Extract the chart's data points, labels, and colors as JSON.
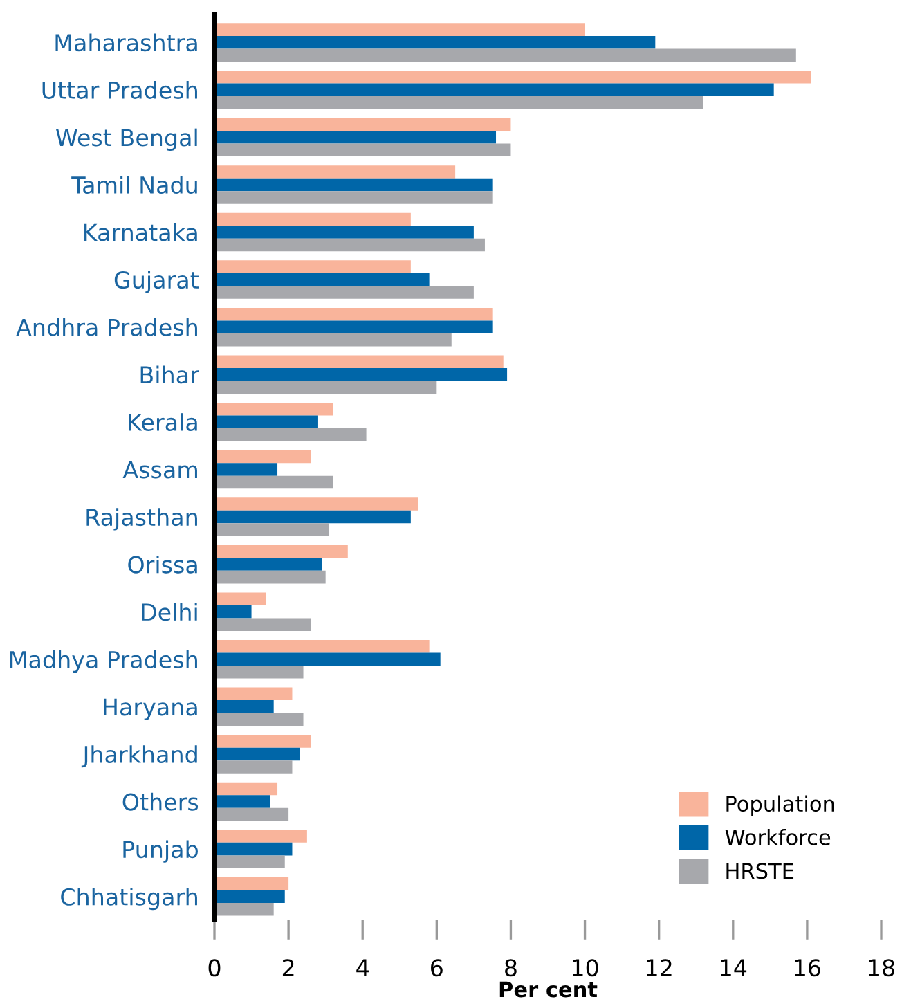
{
  "chart_data": {
    "type": "bar",
    "orientation": "horizontal",
    "xlabel": "Per cent",
    "categories": [
      "Maharashtra",
      "Uttar Pradesh",
      "West Bengal",
      "Tamil Nadu",
      "Karnataka",
      "Gujarat",
      "Andhra Pradesh",
      "Bihar",
      "Kerala",
      "Assam",
      "Rajasthan",
      "Orissa",
      "Delhi",
      "Madhya Pradesh",
      "Haryana",
      "Jharkhand",
      "Others",
      "Punjab",
      "Chhatisgarh"
    ],
    "series": [
      {
        "name": "Population",
        "color": "#f9b49b",
        "values": [
          10.0,
          16.1,
          8.0,
          6.5,
          5.3,
          5.3,
          7.5,
          7.8,
          3.2,
          2.6,
          5.5,
          3.6,
          1.4,
          5.8,
          2.1,
          2.6,
          1.7,
          2.5,
          2.0
        ]
      },
      {
        "name": "Workforce",
        "color": "#0066a8",
        "values": [
          11.9,
          15.1,
          7.6,
          7.5,
          7.0,
          5.8,
          7.5,
          7.9,
          2.8,
          1.7,
          5.3,
          2.9,
          1.0,
          6.1,
          1.6,
          2.3,
          1.5,
          2.1,
          1.9
        ]
      },
      {
        "name": "HRSTE",
        "color": "#a7a8ac",
        "values": [
          15.7,
          13.2,
          8.0,
          7.5,
          7.3,
          7.0,
          6.4,
          6.0,
          4.1,
          3.2,
          3.1,
          3.0,
          2.6,
          2.4,
          2.4,
          2.1,
          2.0,
          1.9,
          1.6
        ]
      }
    ],
    "xlim": [
      0,
      18
    ],
    "xticks": [
      0,
      2,
      4,
      6,
      8,
      10,
      12,
      14,
      16,
      18
    ],
    "grid": false,
    "legend": "bottom right"
  }
}
